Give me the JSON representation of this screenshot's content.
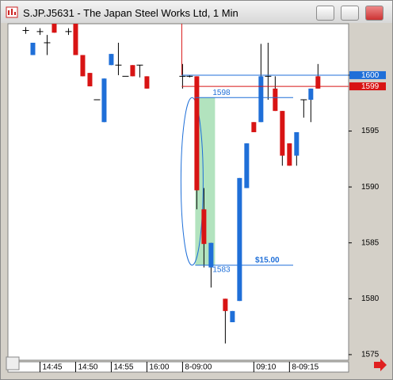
{
  "window_title": "S.JP.J5631 - The Japan Steel Works Ltd, 1 Min",
  "chart_data": {
    "type": "candlestick",
    "x": [
      0,
      1,
      2,
      3,
      4,
      6,
      7,
      8,
      9,
      10,
      11,
      12,
      13,
      14,
      15,
      16,
      17,
      22,
      23,
      24,
      25,
      26,
      28,
      29,
      30,
      31,
      32,
      33,
      34,
      35,
      36,
      37,
      38,
      39,
      40,
      41
    ],
    "open": [
      1604,
      1601.8,
      1603.9,
      1602.9,
      1604.6,
      1603.9,
      1604.6,
      1601.8,
      1600.2,
      1597.8,
      1595.8,
      1600.9,
      1600.9,
      1599.9,
      1600.9,
      1600.9,
      1599.9,
      1599.9,
      1599.9,
      1599.9,
      1588,
      1582.8,
      1580,
      1577.9,
      1579.8,
      1589.9,
      1595.8,
      1595.8,
      1599.9,
      1598.8,
      1596.8,
      1593.9,
      1592.8,
      1597.8,
      1597.8,
      1599.9
    ],
    "high": [
      1604.3,
      1602.9,
      1604.2,
      1603.6,
      1604.6,
      1604.2,
      1604.6,
      1601.8,
      1600.2,
      1597.8,
      1599.7,
      1601.9,
      1602.9,
      1599.9,
      1600.9,
      1600.9,
      1599.9,
      1601,
      1600,
      1599.9,
      1589.9,
      1585,
      1580,
      1578.9,
      1590.8,
      1593.9,
      1595.8,
      1602.8,
      1602.9,
      1599.9,
      1596.8,
      1593.9,
      1594.9,
      1597.8,
      1598.8,
      1601
    ],
    "low": [
      1603.7,
      1601.8,
      1603.6,
      1601.8,
      1603.8,
      1603.6,
      1601.8,
      1599.9,
      1599,
      1597.8,
      1595.8,
      1600.9,
      1600,
      1599.9,
      1599.9,
      1599.8,
      1598.8,
      1598.8,
      1599.8,
      1588,
      1582.8,
      1581,
      1576,
      1577.9,
      1579.8,
      1589.9,
      1594.9,
      1595.8,
      1597.8,
      1596.8,
      1591.9,
      1591.9,
      1591.9,
      1596.2,
      1595.8,
      1598.8
    ],
    "close": [
      1604,
      1602.9,
      1603.9,
      1602.9,
      1603.8,
      1603.9,
      1601.8,
      1599.9,
      1599,
      1597.8,
      1599.7,
      1601.9,
      1600.9,
      1599.9,
      1599.9,
      1600.9,
      1598.8,
      1599.9,
      1599.9,
      1589.7,
      1584.9,
      1585,
      1578.9,
      1578.9,
      1590.8,
      1593.9,
      1594.9,
      1599.9,
      1599.9,
      1596.8,
      1592.8,
      1591.9,
      1594.9,
      1597.8,
      1598.8,
      1598.8
    ],
    "up_color": "#1f6fd8",
    "down_color": "#d81414",
    "xlim": [
      -2.5,
      45.3
    ],
    "ylim": [
      1574.5,
      1604.6
    ],
    "xticks": [
      {
        "value": 2,
        "label": "14:45"
      },
      {
        "value": 7,
        "label": "14:50"
      },
      {
        "value": 12,
        "label": "14:55"
      },
      {
        "value": 17,
        "label": "16:00"
      },
      {
        "value": 22,
        "label": "8-09:00"
      },
      {
        "value": 32,
        "label": "09:10"
      },
      {
        "value": 37,
        "label": "8-09:15"
      }
    ],
    "yticks": [
      1575,
      1580,
      1585,
      1590,
      1595,
      1600
    ],
    "price_lines": [
      {
        "value": 1600,
        "color": "#1f6fd8"
      },
      {
        "value": 1599,
        "color": "#d81414"
      }
    ],
    "measure": {
      "high": 1598,
      "low": 1583,
      "label": "$15.00"
    }
  }
}
